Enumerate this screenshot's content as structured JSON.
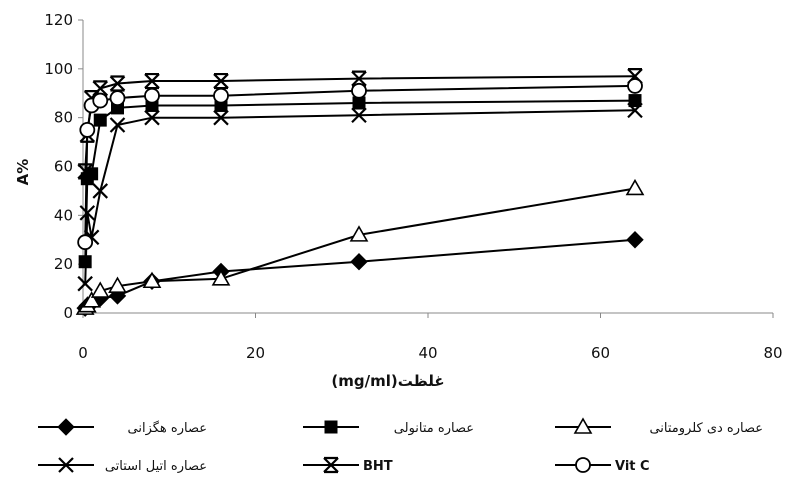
{
  "chart_data": {
    "type": "line",
    "title": "",
    "xlabel": "(mg/ml)غلظت",
    "ylabel": "A%",
    "xlim": [
      0,
      80
    ],
    "ylim": [
      0,
      120
    ],
    "x_ticks": [
      0,
      20,
      40,
      60,
      80
    ],
    "y_ticks": [
      0,
      20,
      40,
      60,
      80,
      100,
      120
    ],
    "grid": false,
    "legend_position": "bottom",
    "series": [
      {
        "name": "عصاره هگزانی",
        "marker": "diamond-filled",
        "x": [
          0.25,
          0.5,
          1,
          2,
          4,
          8,
          16,
          32,
          64
        ],
        "y": [
          2,
          3,
          4,
          6,
          7,
          13,
          17,
          21,
          30
        ]
      },
      {
        "name": "عصاره متانولی",
        "marker": "square-filled",
        "x": [
          0.25,
          0.5,
          1,
          2,
          4,
          8,
          16,
          32,
          64
        ],
        "y": [
          21,
          55,
          57,
          79,
          84,
          85,
          85,
          86,
          87
        ]
      },
      {
        "name": "عصاره دی کلرومتانی",
        "marker": "triangle-open",
        "x": [
          0.25,
          0.5,
          1,
          2,
          4,
          8,
          16,
          32,
          64
        ],
        "y": [
          2,
          3,
          5,
          9,
          11,
          13,
          14,
          32,
          51
        ]
      },
      {
        "name": "عصاره اتیل استاتی",
        "marker": "x",
        "x": [
          0.25,
          0.5,
          1,
          2,
          4,
          8,
          16,
          32,
          64
        ],
        "y": [
          12,
          41,
          31,
          50,
          77,
          80,
          80,
          81,
          83
        ]
      },
      {
        "name": "BHT",
        "marker": "star",
        "x": [
          0.25,
          0.5,
          1,
          2,
          4,
          8,
          16,
          32,
          64
        ],
        "y": [
          58,
          73,
          88,
          92,
          94,
          95,
          95,
          96,
          97
        ]
      },
      {
        "name": "Vit C",
        "marker": "circle-open",
        "x": [
          0.25,
          0.5,
          1,
          2,
          4,
          8,
          16,
          32,
          64
        ],
        "y": [
          29,
          75,
          85,
          87,
          88,
          89,
          89,
          91,
          93
        ]
      }
    ]
  }
}
